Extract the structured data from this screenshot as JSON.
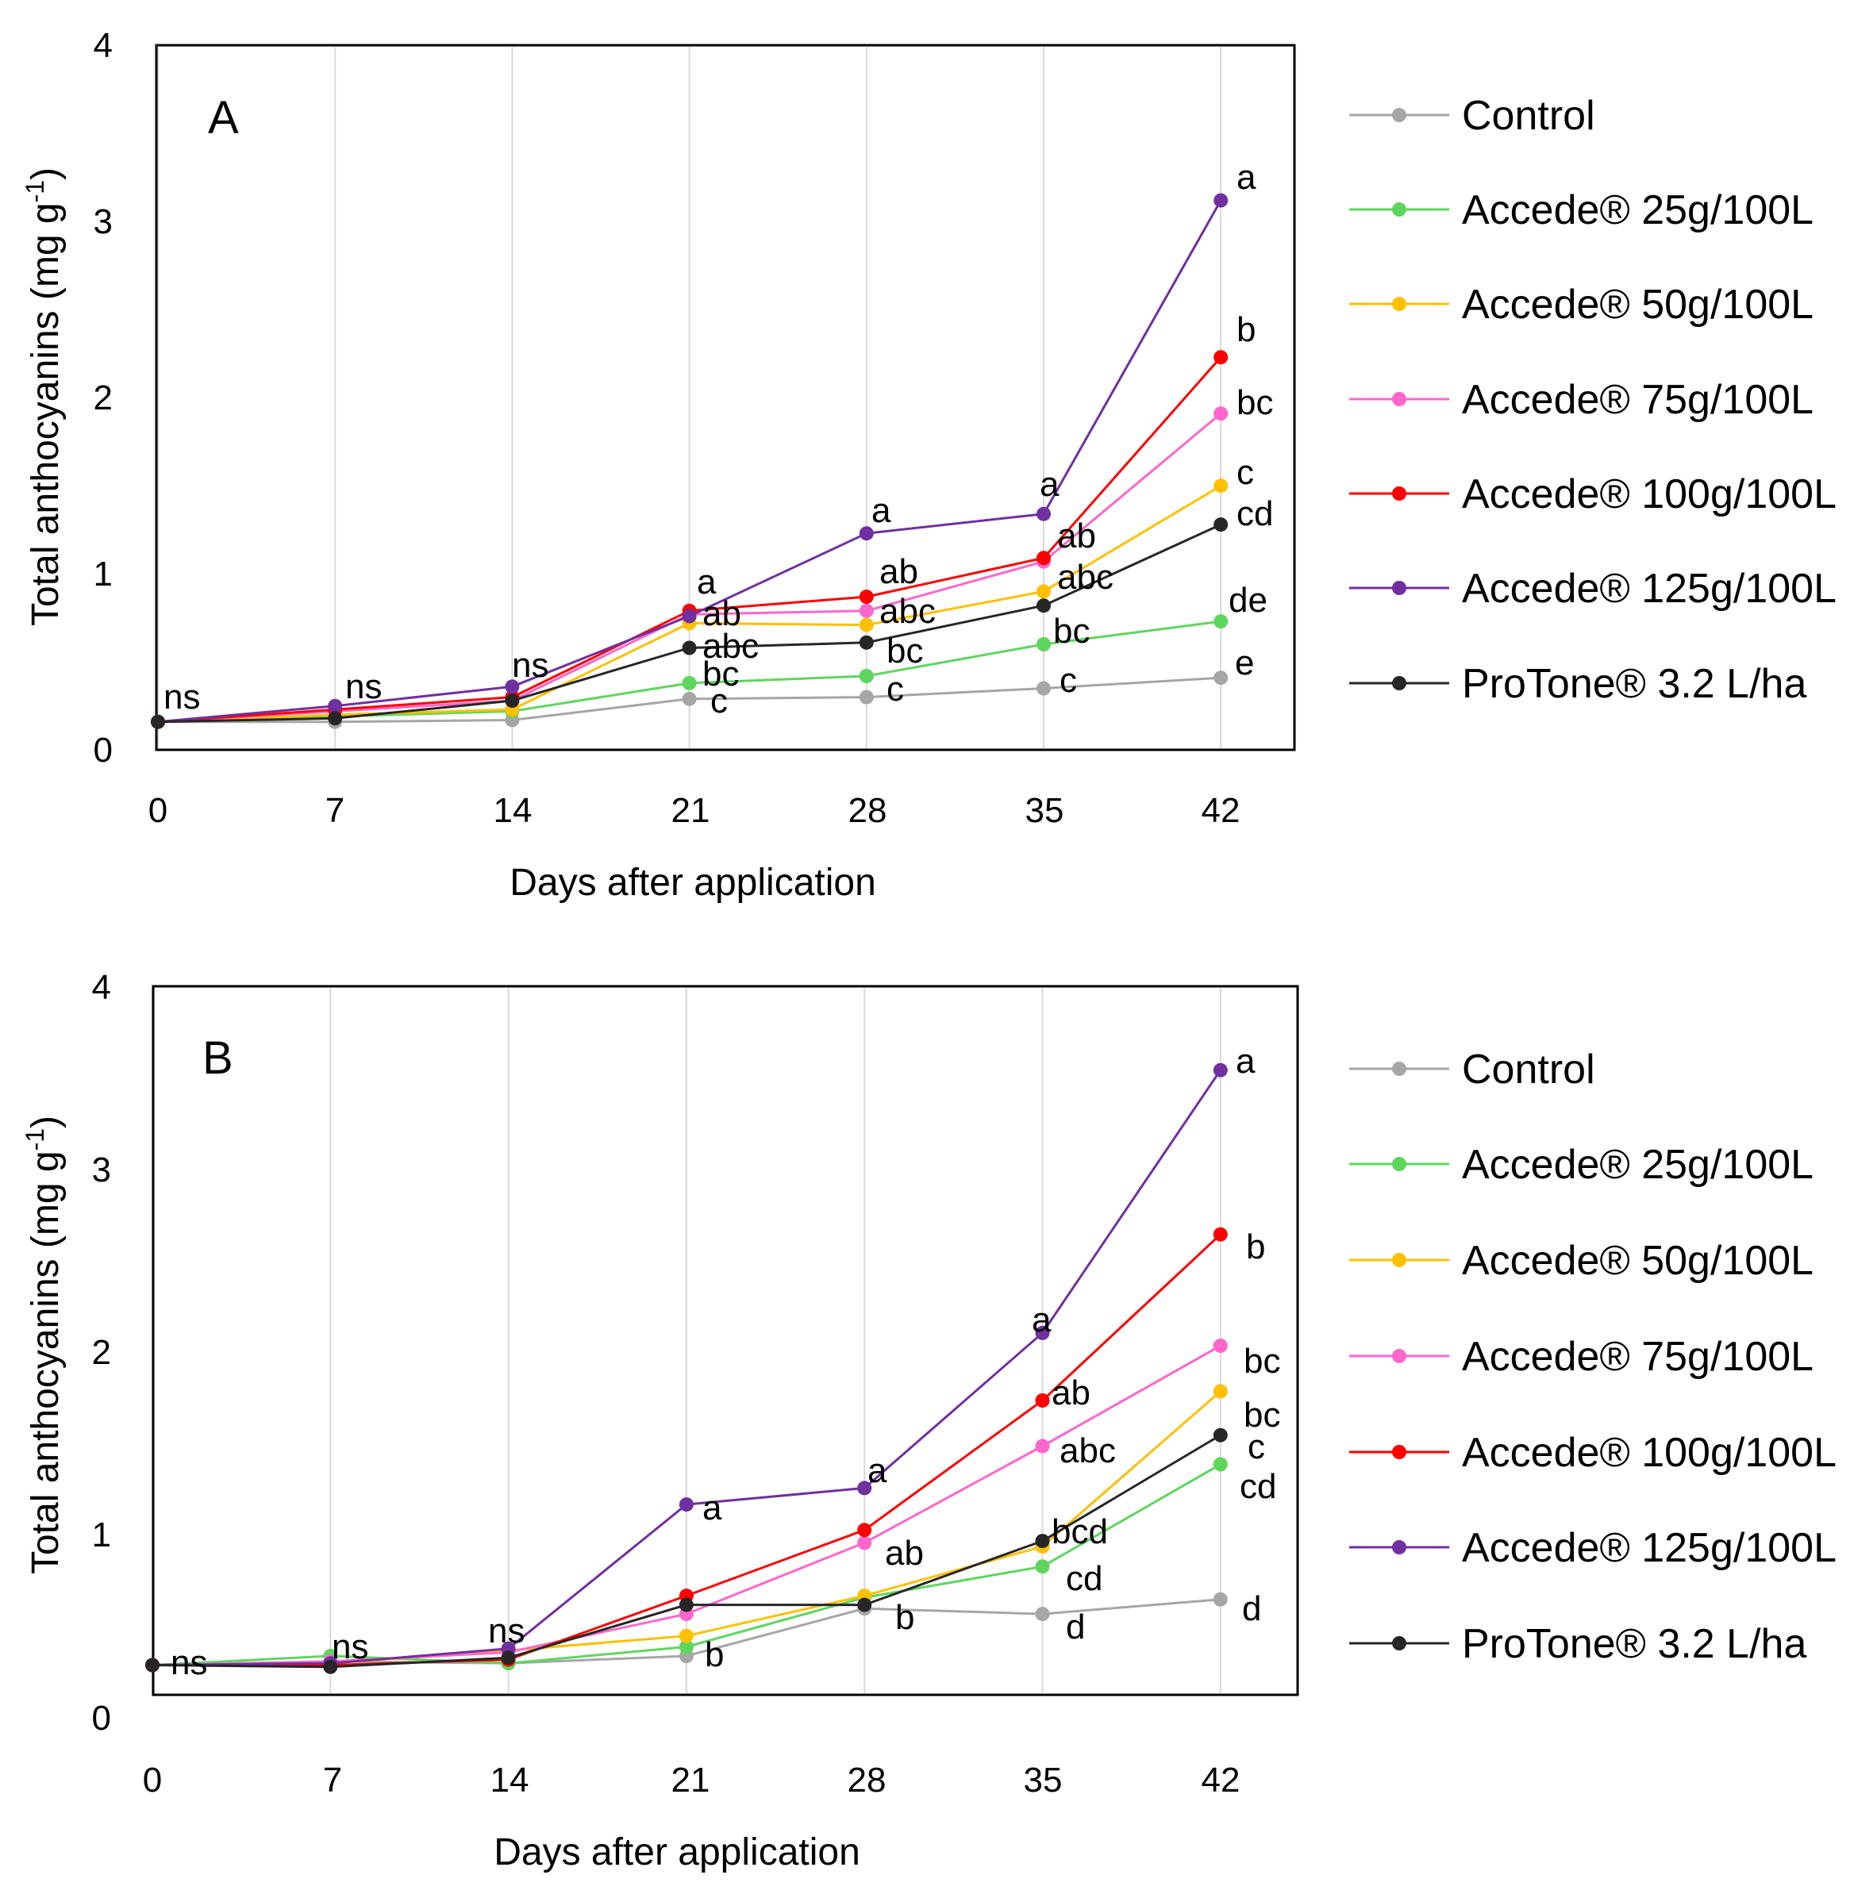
{
  "legend": [
    {
      "key": "control",
      "label": "Control",
      "color": "#A6A6A6"
    },
    {
      "key": "a25",
      "label": "Accede® 25g/100L",
      "color": "#5ED65E"
    },
    {
      "key": "a50",
      "label": "Accede® 50g/100L",
      "color": "#FFC000"
    },
    {
      "key": "a75",
      "label": "Accede® 75g/100L",
      "color": "#FF66CC"
    },
    {
      "key": "a100",
      "label": "Accede® 100g/100L",
      "color": "#FF0000"
    },
    {
      "key": "a125",
      "label": "Accede® 125g/100L",
      "color": "#7030A0"
    },
    {
      "key": "protone",
      "label": "ProTone® 3.2 L/ha",
      "color": "#262626"
    }
  ],
  "chart_data": [
    {
      "panel": "A",
      "type": "line",
      "xlabel": "Days after application",
      "ylabel": "Total anthocyanins (mg g-1)",
      "x": [
        0,
        7,
        14,
        21,
        28,
        35,
        42
      ],
      "ylim": [
        0,
        4
      ],
      "yticks": [
        0,
        1,
        2,
        3,
        4
      ],
      "grid": "vertical",
      "series": [
        {
          "key": "control",
          "values": [
            0.15,
            0.15,
            0.16,
            0.28,
            0.29,
            0.34,
            0.4
          ]
        },
        {
          "key": "a25",
          "values": [
            0.15,
            0.18,
            0.21,
            0.37,
            0.41,
            0.59,
            0.72
          ]
        },
        {
          "key": "a50",
          "values": [
            0.15,
            0.19,
            0.22,
            0.71,
            0.7,
            0.89,
            1.49
          ]
        },
        {
          "key": "a75",
          "values": [
            0.15,
            0.21,
            0.27,
            0.76,
            0.78,
            1.06,
            1.9
          ]
        },
        {
          "key": "a100",
          "values": [
            0.15,
            0.22,
            0.29,
            0.78,
            0.86,
            1.08,
            2.22
          ]
        },
        {
          "key": "a125",
          "values": [
            0.15,
            0.24,
            0.35,
            0.75,
            1.22,
            1.33,
            3.11
          ]
        },
        {
          "key": "protone",
          "values": [
            0.15,
            0.17,
            0.27,
            0.57,
            0.6,
            0.81,
            1.27
          ]
        }
      ],
      "annotations": [
        {
          "x": 0,
          "rows": [
            "ns"
          ]
        },
        {
          "x": 7,
          "rows": [
            "ns"
          ]
        },
        {
          "x": 14,
          "rows": [
            "ns"
          ]
        },
        {
          "x": 21,
          "rows": [
            "a",
            "ab",
            "abc",
            "bc",
            "c"
          ]
        },
        {
          "x": 28,
          "rows": [
            "a",
            "ab",
            "abc",
            "bc",
            "c"
          ]
        },
        {
          "x": 35,
          "rows": [
            "a",
            "ab",
            "abc",
            "bc",
            "c"
          ]
        },
        {
          "x": 42,
          "rows": [
            "a",
            "b",
            "bc",
            "c",
            "cd",
            "de",
            "e"
          ]
        }
      ]
    },
    {
      "panel": "B",
      "type": "line",
      "xlabel": "Days after application",
      "ylabel": "Total anthocyanins (mg g-1)",
      "x": [
        0,
        7,
        14,
        21,
        28,
        35,
        42
      ],
      "ylim": [
        0,
        4
      ],
      "yticks": [
        0,
        1,
        2,
        3,
        4
      ],
      "grid": "vertical",
      "series": [
        {
          "key": "control",
          "values": [
            0.15,
            0.17,
            0.16,
            0.2,
            0.46,
            0.43,
            0.51
          ]
        },
        {
          "key": "a25",
          "values": [
            0.15,
            0.2,
            0.16,
            0.25,
            0.52,
            0.69,
            1.25
          ]
        },
        {
          "key": "a50",
          "values": [
            0.15,
            0.16,
            0.23,
            0.31,
            0.53,
            0.8,
            1.65
          ]
        },
        {
          "key": "a75",
          "values": [
            0.15,
            0.17,
            0.22,
            0.43,
            0.82,
            1.35,
            1.9
          ]
        },
        {
          "key": "a100",
          "values": [
            0.15,
            0.15,
            0.18,
            0.53,
            0.89,
            1.6,
            2.51
          ]
        },
        {
          "key": "a125",
          "values": [
            0.15,
            0.16,
            0.24,
            1.03,
            1.12,
            1.97,
            3.41
          ]
        },
        {
          "key": "protone",
          "values": [
            0.15,
            0.14,
            0.19,
            0.48,
            0.48,
            0.83,
            1.41
          ]
        }
      ],
      "annotations": [
        {
          "x": 0,
          "rows": [
            "ns"
          ]
        },
        {
          "x": 7,
          "rows": [
            "ns"
          ]
        },
        {
          "x": 14,
          "rows": [
            "ns"
          ]
        },
        {
          "x": 21,
          "rows": [
            "a",
            "b"
          ]
        },
        {
          "x": 28,
          "rows": [
            "a",
            "ab",
            "b"
          ]
        },
        {
          "x": 35,
          "rows": [
            "a",
            "ab",
            "abc",
            "bcd",
            "cd",
            "d"
          ]
        },
        {
          "x": 42,
          "rows": [
            "a",
            "b",
            "bc",
            "bc",
            "c",
            "cd",
            "d"
          ]
        }
      ]
    }
  ]
}
